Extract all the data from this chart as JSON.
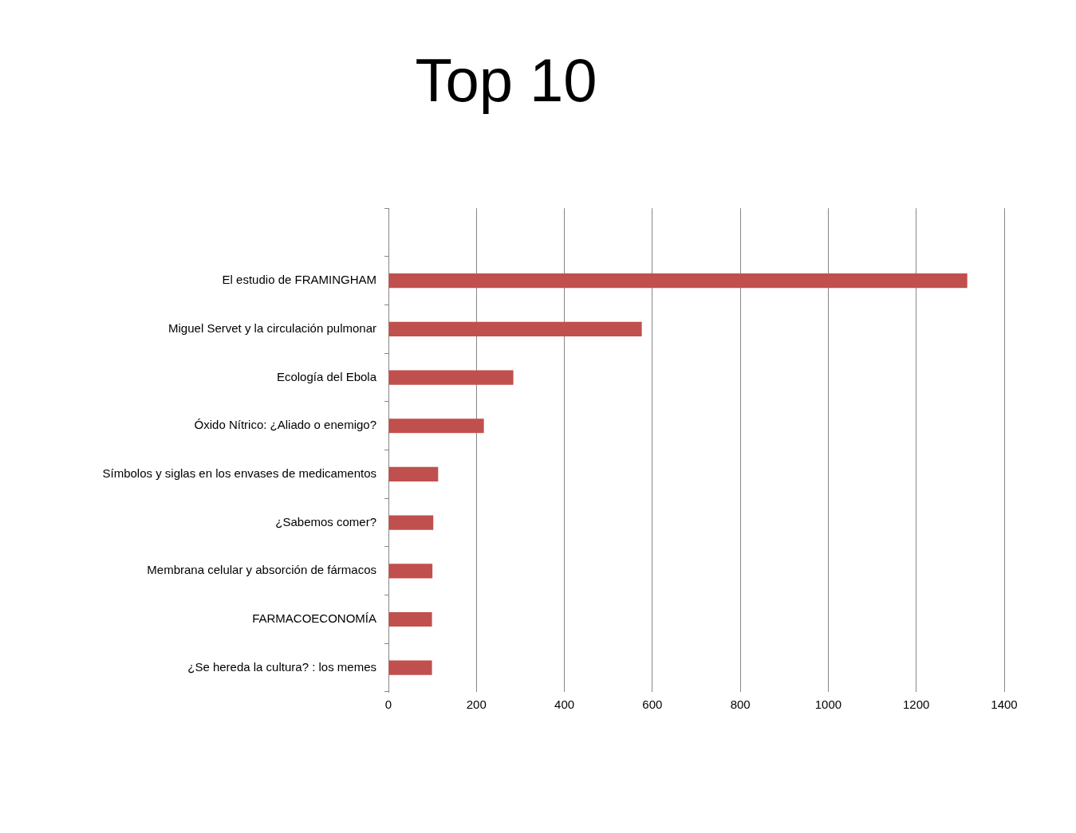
{
  "chart_data": {
    "type": "bar",
    "orientation": "horizontal",
    "title": "Top 10",
    "categories": [
      null,
      "El estudio de FRAMINGHAM",
      "Miguel Servet y la circulación pulmonar",
      "Ecología del Ebola",
      "Óxido Nítrico: ¿Aliado o enemigo?",
      "Símbolos y siglas en los envases de medicamentos",
      "¿Sabemos comer?",
      "Membrana celular y absorción de fármacos",
      "FARMACOECONOMÍA",
      "¿Se hereda la cultura? : los memes"
    ],
    "values": [
      null,
      1316,
      576,
      284,
      217,
      113,
      102,
      100,
      99,
      99
    ],
    "color": "#c0504d",
    "xlim": [
      0,
      1400
    ],
    "xticks": [
      0,
      200,
      400,
      600,
      800,
      1000,
      1200,
      1400
    ],
    "grid": "x",
    "legend": false
  }
}
